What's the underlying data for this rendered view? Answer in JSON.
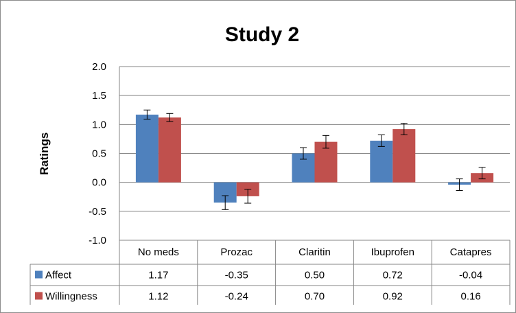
{
  "chart_data": {
    "type": "bar",
    "title": "Study 2",
    "ylabel": "Ratings",
    "xlabel": "",
    "categories": [
      "No meds",
      "Prozac",
      "Claritin",
      "Ibuprofen",
      "Catapres"
    ],
    "ylim": [
      -1.0,
      2.0
    ],
    "yticks": [
      "2.0",
      "1.5",
      "1.0",
      "0.5",
      "0.0",
      "-0.5",
      "-1.0"
    ],
    "grid": true,
    "legend": "data-table",
    "series": [
      {
        "name": "Affect",
        "color": "#4f81bd",
        "values": [
          1.17,
          -0.35,
          0.5,
          0.72,
          -0.04
        ],
        "labels": [
          "1.17",
          "-0.35",
          "0.50",
          "0.72",
          "-0.04"
        ],
        "error": [
          0.08,
          0.12,
          0.1,
          0.1,
          0.1
        ]
      },
      {
        "name": "Willingness",
        "color": "#c0504d",
        "values": [
          1.12,
          -0.24,
          0.7,
          0.92,
          0.16
        ],
        "labels": [
          "1.12",
          "-0.24",
          "0.70",
          "0.92",
          "0.16"
        ],
        "error": [
          0.07,
          0.12,
          0.11,
          0.1,
          0.1
        ]
      }
    ]
  }
}
